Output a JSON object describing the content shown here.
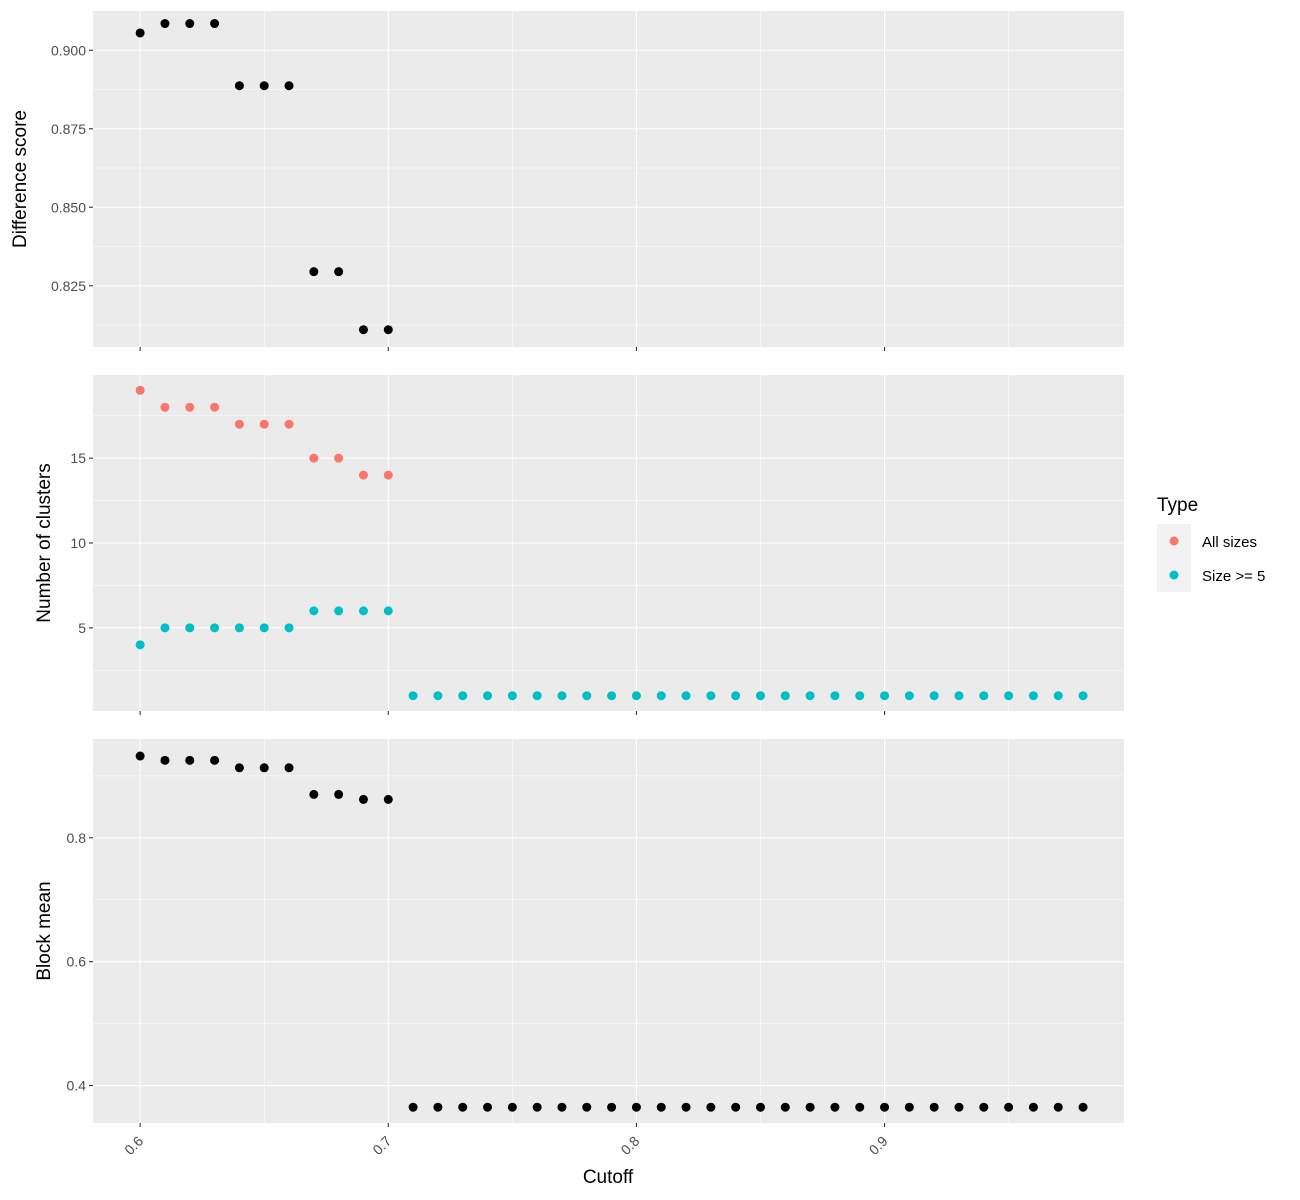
{
  "colors": {
    "panel_bg": "#EBEBEB",
    "grid_major": "#FFFFFF",
    "black_point": "#000000",
    "all_sizes": "#F8766D",
    "size_ge_5": "#00BFC4",
    "tick_mark": "#333333",
    "tick_label": "#4D4D4D"
  },
  "chart_data": {
    "type": "scatter",
    "xlabel": "Cutoff",
    "x_ticks": [
      "0.6",
      "0.7",
      "0.8",
      "0.9"
    ],
    "x_tick_values": [
      0.6,
      0.7,
      0.8,
      0.9
    ],
    "xlim": [
      0.581,
      0.9965
    ],
    "legend": {
      "title": "Type",
      "placement": "right",
      "entries": [
        {
          "label": "All sizes",
          "color": "#F8766D"
        },
        {
          "label": "Size >= 5",
          "color": "#00BFC4"
        }
      ]
    },
    "panels": [
      {
        "id": "difference",
        "ylabel": "Difference score",
        "ylim": [
          0.8055,
          0.9125
        ],
        "y_ticks": [
          "0.825",
          "0.850",
          "0.875",
          "0.900"
        ],
        "y_tick_values": [
          0.825,
          0.85,
          0.875,
          0.9
        ],
        "series": [
          {
            "key": "black",
            "x": [
              0.6,
              0.61,
              0.62,
              0.63,
              0.64,
              0.65,
              0.66,
              0.67,
              0.68,
              0.69,
              0.7
            ],
            "y": [
              0.9055,
              0.9085,
              0.9085,
              0.9085,
              0.8887,
              0.8887,
              0.8887,
              0.8295,
              0.8295,
              0.811,
              0.811
            ]
          }
        ]
      },
      {
        "id": "clusters",
        "ylabel": "Number of clusters",
        "ylim": [
          0.1,
          19.9
        ],
        "y_ticks": [
          "5",
          "10",
          "15"
        ],
        "y_tick_values": [
          5,
          10,
          15
        ],
        "series": [
          {
            "key": "all_sizes",
            "x": [
              0.6,
              0.61,
              0.62,
              0.63,
              0.64,
              0.65,
              0.66,
              0.67,
              0.68,
              0.69,
              0.7
            ],
            "y": [
              19,
              18,
              18,
              18,
              17,
              17,
              17,
              15,
              15,
              14,
              14
            ]
          },
          {
            "key": "size_ge_5",
            "x": [
              0.6,
              0.61,
              0.62,
              0.63,
              0.64,
              0.65,
              0.66,
              0.67,
              0.68,
              0.69,
              0.7,
              0.71,
              0.72,
              0.73,
              0.74,
              0.75,
              0.76,
              0.77,
              0.78,
              0.79,
              0.8,
              0.81,
              0.82,
              0.83,
              0.84,
              0.85,
              0.86,
              0.87,
              0.88,
              0.89,
              0.9,
              0.91,
              0.92,
              0.93,
              0.94,
              0.95,
              0.96,
              0.97,
              0.98
            ],
            "y": [
              4,
              5,
              5,
              5,
              5,
              5,
              5,
              6,
              6,
              6,
              6,
              1,
              1,
              1,
              1,
              1,
              1,
              1,
              1,
              1,
              1,
              1,
              1,
              1,
              1,
              1,
              1,
              1,
              1,
              1,
              1,
              1,
              1,
              1,
              1,
              1,
              1,
              1,
              1
            ]
          }
        ]
      },
      {
        "id": "block",
        "ylabel": "Block mean",
        "ylim": [
          0.3395,
          0.9595
        ],
        "y_ticks": [
          "0.4",
          "0.6",
          "0.8"
        ],
        "y_tick_values": [
          0.4,
          0.6,
          0.8
        ],
        "series": [
          {
            "key": "black",
            "x": [
              0.6,
              0.61,
              0.62,
              0.63,
              0.64,
              0.65,
              0.66,
              0.67,
              0.68,
              0.69,
              0.7,
              0.71,
              0.72,
              0.73,
              0.74,
              0.75,
              0.76,
              0.77,
              0.78,
              0.79,
              0.8,
              0.81,
              0.82,
              0.83,
              0.84,
              0.85,
              0.86,
              0.87,
              0.88,
              0.89,
              0.9,
              0.91,
              0.92,
              0.93,
              0.94,
              0.95,
              0.96,
              0.97,
              0.98
            ],
            "y": [
              0.932,
              0.925,
              0.925,
              0.925,
              0.913,
              0.913,
              0.913,
              0.87,
              0.87,
              0.862,
              0.862,
              0.365,
              0.365,
              0.365,
              0.365,
              0.365,
              0.365,
              0.365,
              0.365,
              0.365,
              0.365,
              0.365,
              0.365,
              0.365,
              0.365,
              0.365,
              0.365,
              0.365,
              0.365,
              0.365,
              0.365,
              0.365,
              0.365,
              0.365,
              0.365,
              0.365,
              0.365,
              0.365,
              0.365
            ]
          }
        ]
      }
    ]
  }
}
